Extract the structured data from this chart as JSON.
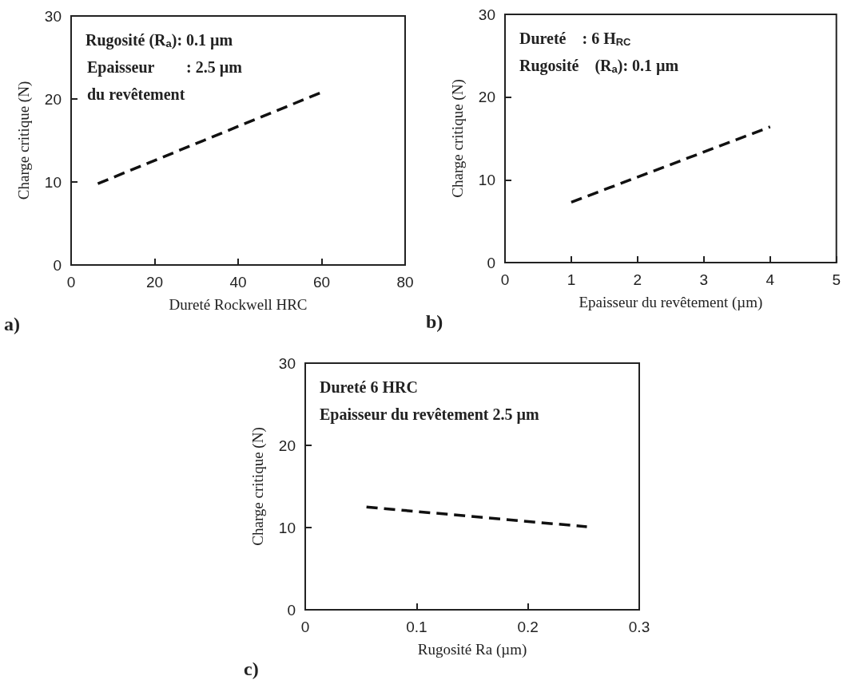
{
  "chart_data": [
    {
      "type": "line",
      "xlabel": "Dureté Rockwell HRC",
      "ylabel": "Charge critique (N)",
      "annotations": [
        "Rugosité (R$_{a}$): 0.1 µm",
        "Epaisseur        : 2.5 µm",
        "du revêtement",
        "a)"
      ],
      "series": [
        {
          "color": "#111111",
          "x": [
            6.4,
            60
          ],
          "values": [
            9.8,
            20.8
          ]
        }
      ],
      "xlim": [
        0,
        80
      ],
      "xticks": [
        0,
        20,
        40,
        60,
        80
      ],
      "ylim": [
        0,
        30
      ],
      "yticks": [
        0,
        10,
        20,
        30
      ],
      "grid": false,
      "marker": "none",
      "line_style": "dashed"
    },
    {
      "type": "line",
      "xlabel": "Epaisseur du revêtement (µm)",
      "ylabel": "Charge critique (N)",
      "annotations": [
        "Dureté    : 6 H$_{RC}$",
        "Rugosité    (R$_{a}$): 0.1 µm",
        "b)"
      ],
      "series": [
        {
          "color": "#111111",
          "x": [
            1,
            4
          ],
          "values": [
            7.3,
            16.4
          ]
        }
      ],
      "xlim": [
        0,
        5
      ],
      "xticks": [
        0,
        1,
        2,
        3,
        4,
        5
      ],
      "ylim": [
        0,
        30
      ],
      "yticks": [
        0,
        10,
        20,
        30
      ],
      "grid": false,
      "marker": "none",
      "line_style": "dashed"
    },
    {
      "type": "line",
      "xlabel": "Rugosité Ra (µm)",
      "ylabel": "Charge critique (N)",
      "annotations": [
        "Dureté 6 HRC",
        "Epaisseur du revêtement 2.5 µm",
        "c)"
      ],
      "series": [
        {
          "color": "#111111",
          "x": [
            0.055,
            0.253
          ],
          "values": [
            12.5,
            10.1
          ]
        }
      ],
      "xlim": [
        0,
        0.3
      ],
      "xticks": [
        0,
        0.1,
        0.2,
        0.3
      ],
      "ylim": [
        0,
        30
      ],
      "yticks": [
        0,
        10,
        20,
        30
      ],
      "grid": false,
      "marker": "none",
      "line_style": "dashed"
    }
  ]
}
